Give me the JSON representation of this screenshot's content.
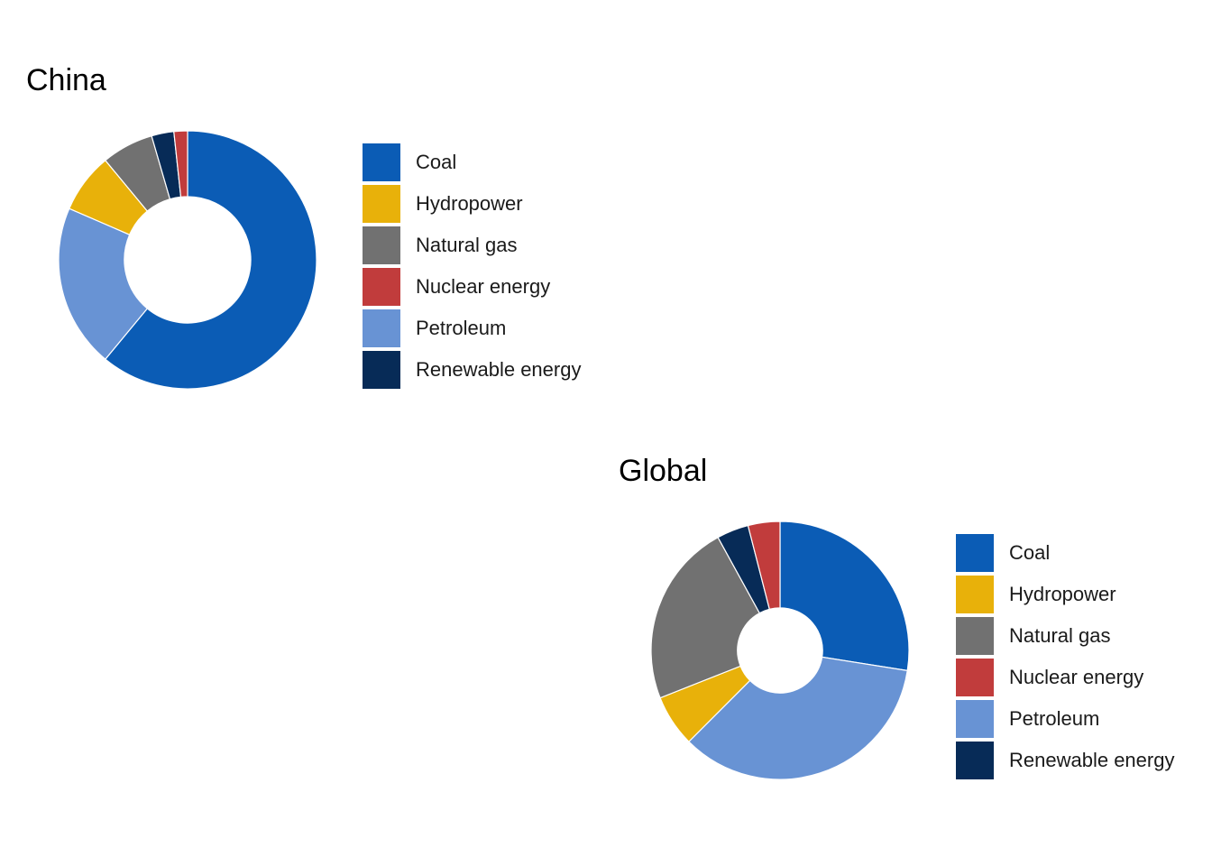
{
  "chart_data": [
    {
      "type": "pie",
      "title": "China",
      "categories": [
        "Coal",
        "Hydropower",
        "Natural gas",
        "Nuclear energy",
        "Petroleum",
        "Renewable energy"
      ],
      "values": [
        61,
        7.5,
        6.5,
        1.7,
        20.5,
        2.8
      ],
      "slice_order": [
        "Coal",
        "Petroleum",
        "Hydropower",
        "Natural gas",
        "Renewable energy",
        "Nuclear energy"
      ],
      "hole": 0.49,
      "legend_position": "right"
    },
    {
      "type": "pie",
      "title": "Global",
      "categories": [
        "Coal",
        "Hydropower",
        "Natural gas",
        "Nuclear energy",
        "Petroleum",
        "Renewable energy"
      ],
      "values": [
        27.5,
        6.5,
        23,
        4,
        35,
        4
      ],
      "slice_order": [
        "Coal",
        "Petroleum",
        "Hydropower",
        "Natural gas",
        "Renewable energy",
        "Nuclear energy"
      ],
      "hole": 0.33,
      "legend_position": "right"
    }
  ],
  "colors": {
    "Coal": "#0b5cb5",
    "Hydropower": "#e8b10a",
    "Natural gas": "#717171",
    "Nuclear energy": "#c13c3c",
    "Petroleum": "#6893d4",
    "Renewable energy": "#072b57"
  }
}
